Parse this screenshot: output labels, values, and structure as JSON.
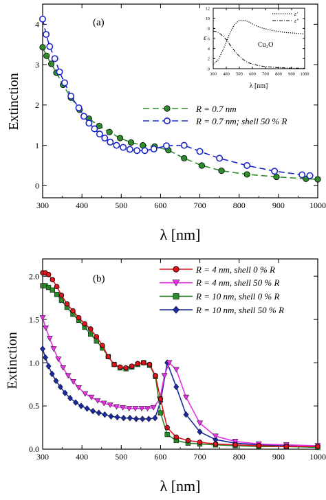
{
  "panels": [
    {
      "id": "a",
      "panel_label": "(a)",
      "ylabel": "Extinction",
      "xlabel": "λ [nm]"
    },
    {
      "id": "b",
      "panel_label": "(b)",
      "ylabel": "Extinction",
      "xlabel": "λ [nm]"
    }
  ],
  "inset": {
    "material_label": "Cu₂O",
    "ylabel": "ε",
    "xlabel": "λ [nm]",
    "legend": [
      "ε′",
      "ε″"
    ]
  },
  "colors": {
    "green": "#2e8b2e",
    "blue": "#1a24c8",
    "red": "#e0141e",
    "magenta": "#e632e6",
    "dark_green": "#2a8a2a",
    "dark_blue": "#1a2a9a"
  },
  "chart_data": [
    {
      "type": "line",
      "panel": "a",
      "ylabel": "Extinction",
      "xlabel": "λ [nm]",
      "xlim": [
        300,
        1000
      ],
      "ylim": [
        -0.3,
        4.5
      ],
      "xticks": [
        300,
        400,
        500,
        600,
        700,
        800,
        900,
        1000
      ],
      "yticks": [
        0,
        1,
        2,
        3,
        4
      ],
      "legend_position": "middle-right",
      "series": [
        {
          "name": "R = 0.7 nm",
          "style": "dashed",
          "color": "#2e8b2e",
          "marker": "filled-circle",
          "x": [
            300,
            310,
            322,
            335,
            352,
            372,
            394,
            418,
            444,
            470,
            497,
            525,
            555,
            585,
            620,
            660,
            705,
            755,
            820,
            895,
            970,
            1000
          ],
          "y": [
            3.43,
            3.22,
            3.02,
            2.8,
            2.5,
            2.18,
            1.88,
            1.66,
            1.48,
            1.33,
            1.18,
            1.07,
            1.0,
            0.97,
            0.88,
            0.68,
            0.5,
            0.37,
            0.28,
            0.22,
            0.17,
            0.16
          ]
        },
        {
          "name": "R = 0.7 nm; shell 50 % R",
          "style": "dashed",
          "color": "#1a24c8",
          "marker": "open-circle",
          "x": [
            300,
            309,
            318,
            331,
            343,
            356,
            372,
            392,
            405,
            418,
            432,
            445,
            458,
            472,
            488,
            505,
            522,
            540,
            560,
            583,
            615,
            660,
            700,
            750,
            820,
            890,
            960,
            980
          ],
          "y": [
            4.13,
            3.75,
            3.45,
            3.15,
            2.82,
            2.55,
            2.22,
            1.93,
            1.72,
            1.55,
            1.41,
            1.28,
            1.18,
            1.08,
            1.0,
            0.95,
            0.9,
            0.87,
            0.87,
            0.91,
            0.99,
            1.0,
            0.85,
            0.68,
            0.5,
            0.36,
            0.27,
            0.25
          ]
        }
      ]
    },
    {
      "type": "line",
      "panel": "a-inset",
      "ylabel": "ε",
      "xlabel": "λ [nm]",
      "xlim": [
        300,
        1000
      ],
      "ylim": [
        0,
        12
      ],
      "xticks": [
        300,
        400,
        500,
        600,
        700,
        800,
        900,
        1000
      ],
      "yticks": [
        0,
        2,
        4,
        6,
        8,
        10,
        12
      ],
      "legend_position": "top-right",
      "series": [
        {
          "name": "ε′",
          "style": "dotted",
          "x": [
            300,
            340,
            380,
            420,
            460,
            500,
            540,
            580,
            620,
            660,
            700,
            750,
            800,
            850,
            900,
            950,
            1000
          ],
          "y": [
            0.8,
            1.8,
            4.0,
            6.6,
            8.7,
            9.6,
            9.6,
            9.2,
            8.6,
            8.2,
            7.9,
            7.6,
            7.4,
            7.2,
            7.1,
            7.0,
            6.9
          ]
        },
        {
          "name": "ε″",
          "style": "dash-dot",
          "x": [
            300,
            330,
            360,
            400,
            440,
            480,
            520,
            560,
            600,
            650,
            700,
            750,
            800,
            900,
            1000
          ],
          "y": [
            7.5,
            7.3,
            6.8,
            5.8,
            4.3,
            3.0,
            2.0,
            1.3,
            0.9,
            0.6,
            0.4,
            0.3,
            0.2,
            0.12,
            0.08
          ]
        }
      ]
    },
    {
      "type": "line",
      "panel": "b",
      "ylabel": "Extinction",
      "xlabel": "λ [nm]",
      "xlim": [
        300,
        1000
      ],
      "ylim": [
        0,
        2.2
      ],
      "xticks": [
        300,
        400,
        500,
        600,
        700,
        800,
        900,
        1000
      ],
      "yticks": [
        0.0,
        0.5,
        1.0,
        1.5,
        2.0
      ],
      "legend_position": "top-right",
      "series": [
        {
          "name": "R = 4 nm, shell 0 % R",
          "color": "#e0141e",
          "marker": "circle",
          "x": [
            300,
            307,
            315,
            325,
            336,
            348,
            362,
            377,
            392,
            407,
            422,
            437,
            452,
            467,
            482,
            497,
            512,
            527,
            542,
            557,
            572,
            587,
            600,
            617,
            640,
            670,
            700,
            740,
            790,
            850,
            920,
            1000
          ],
          "y": [
            2.04,
            2.04,
            2.02,
            1.96,
            1.88,
            1.78,
            1.68,
            1.6,
            1.52,
            1.45,
            1.39,
            1.3,
            1.2,
            1.07,
            0.98,
            0.95,
            0.94,
            0.96,
            0.99,
            1.0,
            0.98,
            0.85,
            0.58,
            0.25,
            0.14,
            0.1,
            0.08,
            0.06,
            0.05,
            0.04,
            0.03,
            0.03
          ]
        },
        {
          "name": "R = 4 nm, shell 50 % R",
          "color": "#e632e6",
          "marker": "triangle-down",
          "x": [
            300,
            308,
            318,
            328,
            340,
            352,
            365,
            378,
            392,
            408,
            424,
            440,
            456,
            472,
            488,
            504,
            520,
            536,
            552,
            567,
            582,
            598,
            610,
            622,
            640,
            665,
            700,
            740,
            790,
            850,
            920,
            1000
          ],
          "y": [
            1.52,
            1.4,
            1.28,
            1.16,
            1.04,
            0.94,
            0.85,
            0.78,
            0.71,
            0.64,
            0.6,
            0.56,
            0.53,
            0.51,
            0.49,
            0.48,
            0.47,
            0.47,
            0.47,
            0.47,
            0.48,
            0.58,
            0.85,
            1.0,
            0.92,
            0.6,
            0.3,
            0.15,
            0.09,
            0.06,
            0.05,
            0.04
          ]
        },
        {
          "name": "R = 10 nm, shell 0 % R",
          "color": "#2a8a2a",
          "marker": "square",
          "x": [
            300,
            307,
            315,
            325,
            336,
            348,
            362,
            377,
            392,
            407,
            422,
            437,
            452,
            467,
            482,
            497,
            512,
            527,
            542,
            557,
            572,
            587,
            600,
            617,
            640,
            670,
            700,
            740,
            790,
            850,
            920,
            1000
          ],
          "y": [
            1.89,
            1.89,
            1.87,
            1.84,
            1.79,
            1.72,
            1.64,
            1.56,
            1.49,
            1.41,
            1.33,
            1.25,
            1.17,
            1.07,
            0.98,
            0.94,
            0.93,
            0.95,
            0.98,
            1.0,
            0.97,
            0.84,
            0.42,
            0.17,
            0.1,
            0.07,
            0.06,
            0.05,
            0.04,
            0.03,
            0.03,
            0.02
          ]
        },
        {
          "name": "R = 10 nm, shell 50 % R",
          "color": "#1a2a9a",
          "marker": "diamond",
          "x": [
            300,
            307,
            315,
            324,
            334,
            345,
            357,
            370,
            384,
            398,
            413,
            428,
            443,
            458,
            474,
            490,
            506,
            522,
            538,
            554,
            570,
            586,
            600,
            617,
            640,
            665,
            700,
            740,
            790,
            850,
            920,
            1000
          ],
          "y": [
            1.16,
            1.06,
            0.96,
            0.87,
            0.79,
            0.72,
            0.65,
            0.59,
            0.54,
            0.5,
            0.47,
            0.44,
            0.42,
            0.4,
            0.38,
            0.37,
            0.36,
            0.36,
            0.35,
            0.35,
            0.35,
            0.36,
            0.55,
            1.0,
            0.72,
            0.4,
            0.2,
            0.11,
            0.07,
            0.05,
            0.04,
            0.03
          ]
        }
      ]
    }
  ]
}
